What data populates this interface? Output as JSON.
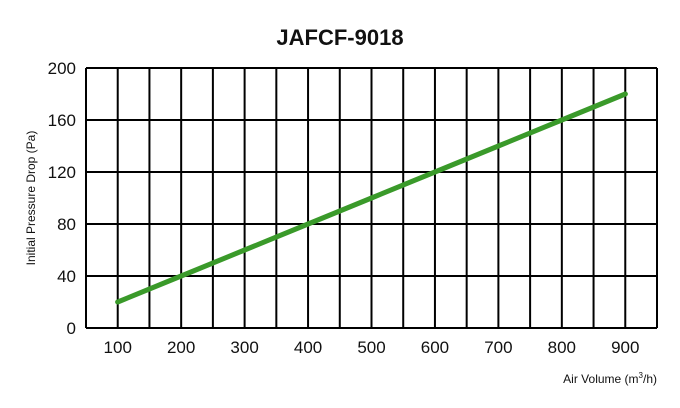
{
  "chart_data": {
    "type": "line",
    "title": "JAFCF-9018",
    "xlabel": "Air Volume (m",
    "xlabel_sup": "3",
    "xlabel_tail": "/h)",
    "ylabel": "Initial Pressure Drop (Pa)",
    "xlim": [
      50,
      950
    ],
    "ylim": [
      0,
      200
    ],
    "x_ticks": [
      100,
      200,
      300,
      400,
      500,
      600,
      700,
      800,
      900
    ],
    "y_ticks": [
      0,
      40,
      80,
      120,
      160,
      200
    ],
    "grid": true,
    "legend": "none",
    "series": [
      {
        "color": "#3a9a2a",
        "x": [
          100,
          200,
          300,
          400,
          500,
          600,
          700,
          800,
          900
        ],
        "y": [
          20,
          40,
          60,
          80,
          100,
          120,
          140,
          160,
          180
        ]
      }
    ]
  }
}
